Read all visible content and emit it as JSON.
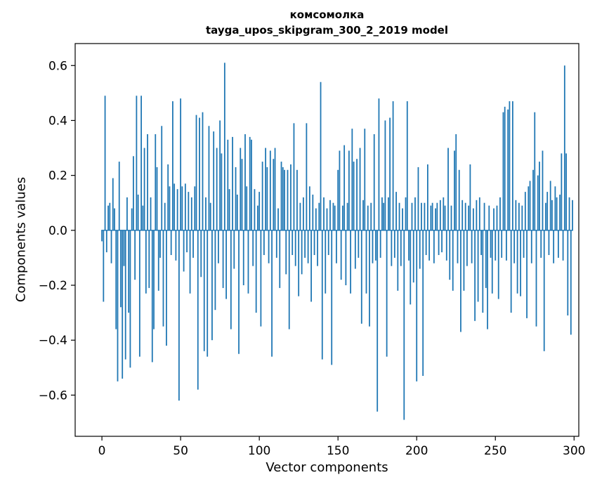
{
  "chart_data": {
    "type": "bar",
    "title": "комсомолка",
    "subtitle": "tayga_upos_skipgram_300_2_2019 model",
    "xlabel": "Vector components",
    "ylabel": "Components values",
    "bar_color": "#1f77b4",
    "axis_color": "#000000",
    "background": "#ffffff",
    "grid": false,
    "legend": false,
    "xlim": [
      -17,
      303
    ],
    "ylim": [
      -0.75,
      0.68
    ],
    "xticks": [
      0,
      50,
      100,
      150,
      200,
      250,
      300
    ],
    "yticks": [
      0.6,
      0.4,
      0.2,
      0.0,
      -0.2,
      -0.4,
      -0.6
    ],
    "n_components": 300,
    "values": [
      -0.04,
      -0.26,
      0.49,
      -0.08,
      0.09,
      0.1,
      -0.12,
      0.19,
      0.08,
      -0.36,
      -0.55,
      0.25,
      -0.28,
      -0.54,
      -0.13,
      -0.47,
      0.12,
      -0.3,
      -0.5,
      0.08,
      0.27,
      -0.18,
      0.49,
      0.13,
      -0.46,
      0.49,
      0.09,
      0.3,
      -0.23,
      0.35,
      -0.21,
      0.12,
      -0.48,
      -0.36,
      0.35,
      0.23,
      -0.22,
      -0.1,
      0.38,
      -0.35,
      0.1,
      -0.42,
      0.24,
      0.16,
      -0.09,
      0.47,
      0.17,
      -0.11,
      0.15,
      -0.62,
      0.48,
      0.16,
      -0.15,
      0.17,
      -0.08,
      0.14,
      -0.23,
      0.12,
      -0.1,
      0.16,
      0.42,
      -0.58,
      0.41,
      -0.17,
      0.43,
      -0.44,
      0.12,
      -0.46,
      0.38,
      0.1,
      -0.4,
      0.36,
      -0.29,
      0.3,
      -0.12,
      0.4,
      0.28,
      -0.21,
      0.61,
      -0.25,
      0.33,
      0.15,
      -0.36,
      0.34,
      -0.14,
      0.23,
      0.13,
      -0.45,
      0.3,
      0.26,
      -0.2,
      0.35,
      0.16,
      -0.23,
      0.34,
      0.33,
      -0.13,
      0.15,
      -0.3,
      0.09,
      0.14,
      -0.35,
      0.25,
      -0.09,
      0.3,
      0.23,
      -0.12,
      0.29,
      -0.46,
      0.26,
      0.3,
      -0.1,
      0.08,
      -0.21,
      0.25,
      0.23,
      0.22,
      -0.16,
      0.22,
      -0.36,
      0.24,
      -0.09,
      0.39,
      -0.13,
      0.22,
      -0.24,
      0.1,
      -0.16,
      0.12,
      -0.1,
      0.39,
      -0.12,
      0.16,
      -0.26,
      0.13,
      -0.09,
      0.08,
      -0.13,
      0.1,
      0.54,
      -0.47,
      0.12,
      -0.23,
      0.08,
      -0.09,
      0.11,
      -0.49,
      0.1,
      0.09,
      -0.12,
      0.22,
      0.29,
      -0.18,
      0.09,
      0.31,
      -0.2,
      0.1,
      0.29,
      -0.23,
      0.37,
      0.25,
      -0.14,
      0.26,
      -0.1,
      0.3,
      -0.34,
      0.11,
      0.37,
      -0.23,
      0.09,
      -0.35,
      0.1,
      -0.12,
      0.35,
      -0.11,
      -0.66,
      0.48,
      -0.1,
      0.12,
      0.1,
      0.4,
      -0.46,
      0.12,
      0.41,
      -0.13,
      0.47,
      -0.1,
      0.14,
      -0.22,
      0.1,
      -0.13,
      0.08,
      -0.69,
      0.12,
      0.47,
      -0.11,
      -0.27,
      0.1,
      -0.19,
      0.12,
      -0.55,
      0.23,
      -0.14,
      0.1,
      -0.53,
      0.1,
      -0.09,
      0.24,
      -0.11,
      0.09,
      0.1,
      -0.12,
      0.08,
      0.1,
      -0.09,
      0.11,
      -0.08,
      0.12,
      0.09,
      -0.11,
      0.3,
      -0.18,
      0.09,
      -0.22,
      0.29,
      0.35,
      -0.12,
      0.22,
      -0.37,
      0.11,
      -0.22,
      0.1,
      -0.13,
      0.09,
      0.24,
      -0.12,
      0.08,
      -0.33,
      0.11,
      -0.26,
      0.12,
      -0.09,
      -0.3,
      0.1,
      -0.21,
      -0.36,
      0.09,
      -0.1,
      -0.23,
      0.08,
      -0.11,
      0.09,
      -0.25,
      0.12,
      -0.1,
      0.43,
      0.45,
      -0.11,
      0.44,
      0.47,
      -0.3,
      0.47,
      -0.12,
      0.11,
      -0.23,
      0.1,
      -0.24,
      0.09,
      -0.1,
      0.14,
      -0.32,
      0.16,
      0.18,
      -0.12,
      0.22,
      0.43,
      -0.35,
      0.2,
      0.25,
      -0.1,
      0.29,
      -0.44,
      0.1,
      0.14,
      -0.09,
      0.18,
      0.11,
      -0.12,
      0.16,
      0.12,
      -0.1,
      0.13,
      0.28,
      -0.11,
      0.6,
      0.28,
      -0.31,
      0.12,
      -0.38,
      0.11
    ]
  }
}
